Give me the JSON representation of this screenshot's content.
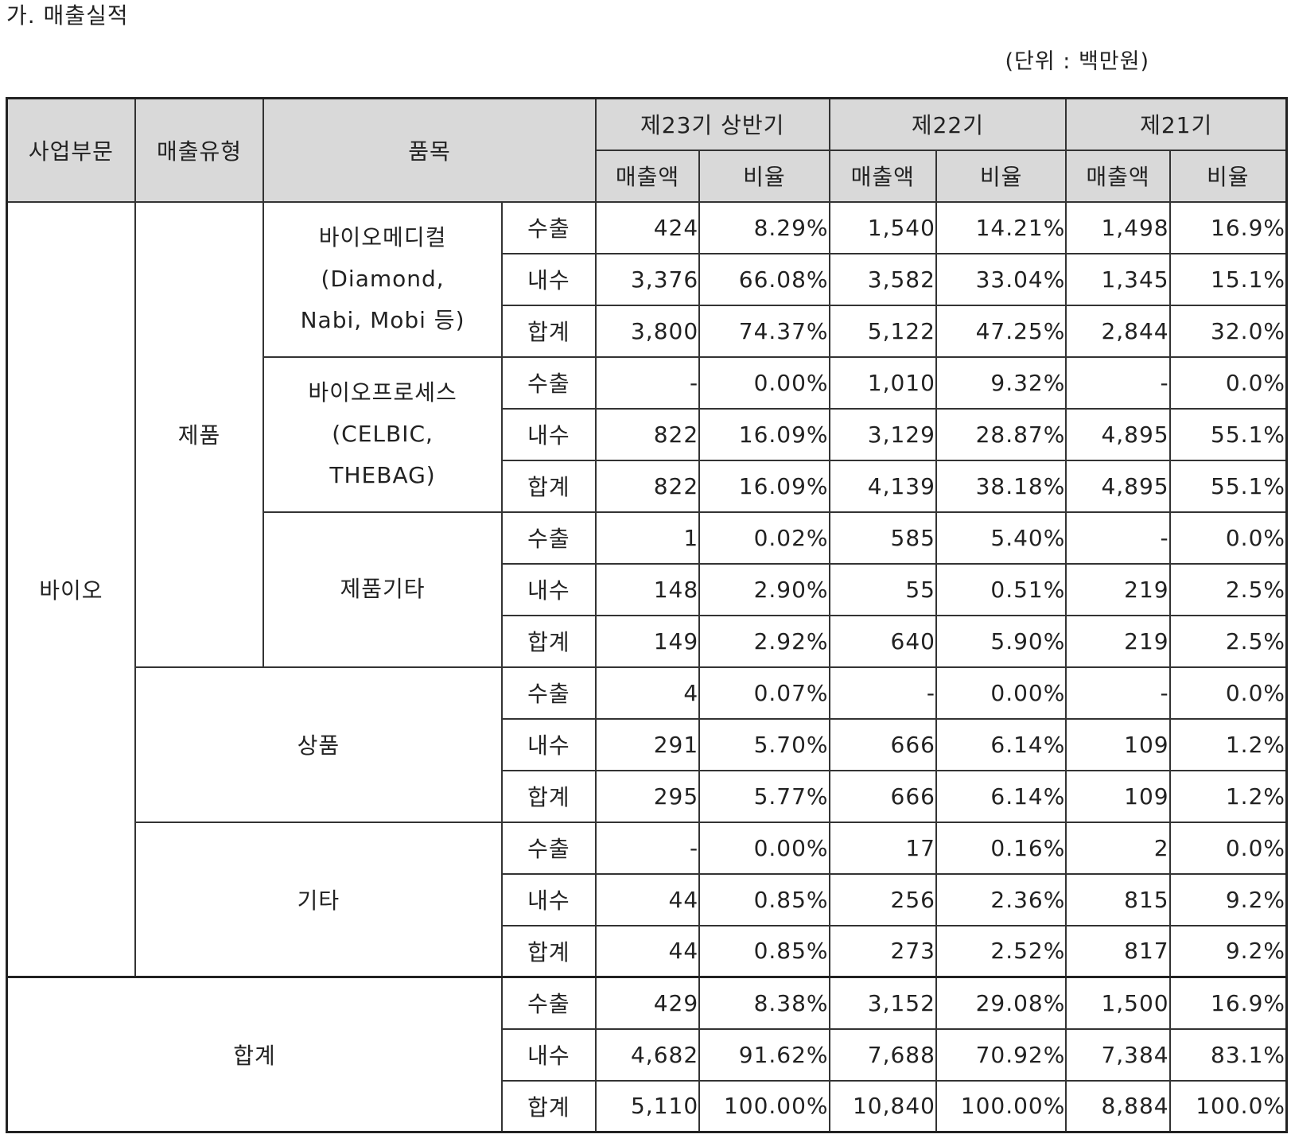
{
  "title": "가. 매출실적",
  "unit": "(단위 : 백만원)",
  "header": {
    "col_segment": "사업부문",
    "col_type": "매출유형",
    "col_item": "품목",
    "periods": [
      "제23기 상반기",
      "제22기",
      "제21기"
    ],
    "amount": "매출액",
    "ratio": "비율"
  },
  "segment": "바이오",
  "type_product": "제품",
  "groups": [
    {
      "item_lines": [
        "바이오메디컬",
        "(Diamond,",
        "Nabi, Mobi 등)"
      ],
      "rows": [
        {
          "kind": "수출",
          "v": [
            "424",
            "8.29%",
            "1,540",
            "14.21%",
            "1,498",
            "16.9%"
          ]
        },
        {
          "kind": "내수",
          "v": [
            "3,376",
            "66.08%",
            "3,582",
            "33.04%",
            "1,345",
            "15.1%"
          ]
        },
        {
          "kind": "합계",
          "v": [
            "3,800",
            "74.37%",
            "5,122",
            "47.25%",
            "2,844",
            "32.0%"
          ]
        }
      ]
    },
    {
      "item_lines": [
        "바이오프로세스",
        "(CELBIC,",
        "THEBAG)"
      ],
      "rows": [
        {
          "kind": "수출",
          "v": [
            "-",
            "0.00%",
            "1,010",
            "9.32%",
            "-",
            "0.0%"
          ]
        },
        {
          "kind": "내수",
          "v": [
            "822",
            "16.09%",
            "3,129",
            "28.87%",
            "4,895",
            "55.1%"
          ]
        },
        {
          "kind": "합계",
          "v": [
            "822",
            "16.09%",
            "4,139",
            "38.18%",
            "4,895",
            "55.1%"
          ]
        }
      ]
    },
    {
      "item_lines": [
        "제품기타"
      ],
      "rows": [
        {
          "kind": "수출",
          "v": [
            "1",
            "0.02%",
            "585",
            "5.40%",
            "-",
            "0.0%"
          ]
        },
        {
          "kind": "내수",
          "v": [
            "148",
            "2.90%",
            "55",
            "0.51%",
            "219",
            "2.5%"
          ]
        },
        {
          "kind": "합계",
          "v": [
            "149",
            "2.92%",
            "640",
            "5.90%",
            "219",
            "2.5%"
          ]
        }
      ]
    },
    {
      "wide_label": "상품",
      "rows": [
        {
          "kind": "수출",
          "v": [
            "4",
            "0.07%",
            "-",
            "0.00%",
            "-",
            "0.0%"
          ]
        },
        {
          "kind": "내수",
          "v": [
            "291",
            "5.70%",
            "666",
            "6.14%",
            "109",
            "1.2%"
          ]
        },
        {
          "kind": "합계",
          "v": [
            "295",
            "5.77%",
            "666",
            "6.14%",
            "109",
            "1.2%"
          ]
        }
      ]
    },
    {
      "wide_label": "기타",
      "rows": [
        {
          "kind": "수출",
          "v": [
            "-",
            "0.00%",
            "17",
            "0.16%",
            "2",
            "0.0%"
          ]
        },
        {
          "kind": "내수",
          "v": [
            "44",
            "0.85%",
            "256",
            "2.36%",
            "815",
            "9.2%"
          ]
        },
        {
          "kind": "합계",
          "v": [
            "44",
            "0.85%",
            "273",
            "2.52%",
            "817",
            "9.2%"
          ]
        }
      ]
    }
  ],
  "total": {
    "label": "합계",
    "rows": [
      {
        "kind": "수출",
        "v": [
          "429",
          "8.38%",
          "3,152",
          "29.08%",
          "1,500",
          "16.9%"
        ]
      },
      {
        "kind": "내수",
        "v": [
          "4,682",
          "91.62%",
          "7,688",
          "70.92%",
          "7,384",
          "83.1%"
        ]
      },
      {
        "kind": "합계",
        "v": [
          "5,110",
          "100.00%",
          "10,840",
          "100.00%",
          "8,884",
          "100.0%"
        ]
      }
    ]
  }
}
